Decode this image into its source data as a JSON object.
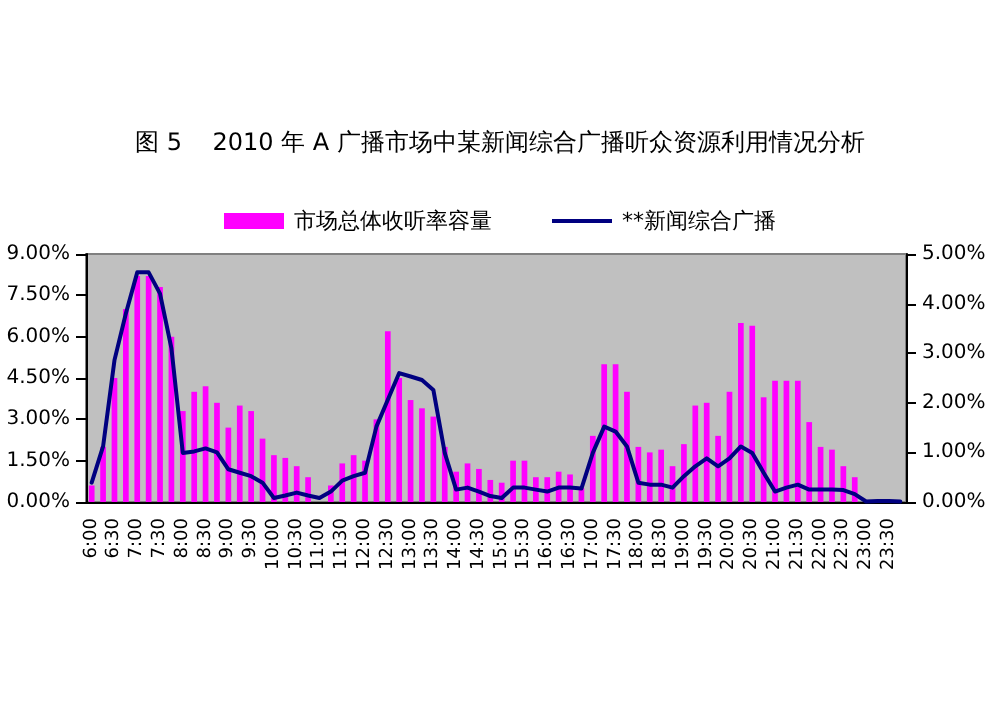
{
  "chart_data": {
    "type": "bar",
    "title": "图 5    2010 年 A 广播市场中某新闻综合广播听众资源利用情况分析",
    "categories": [
      "6:00",
      null,
      "6:30",
      null,
      "7:00",
      null,
      "7:30",
      null,
      "8:00",
      null,
      "8:30",
      null,
      "9:00",
      null,
      "9:30",
      null,
      "10:00",
      null,
      "10:30",
      null,
      "11:00",
      null,
      "11:30",
      null,
      "12:00",
      null,
      "12:30",
      null,
      "13:00",
      null,
      "13:30",
      null,
      "14:00",
      null,
      "14:30",
      null,
      "15:00",
      null,
      "15:30",
      null,
      "16:00",
      null,
      "16:30",
      null,
      "17:00",
      null,
      "17:30",
      null,
      "18:00",
      null,
      "18:30",
      null,
      "19:00",
      null,
      "19:30",
      null,
      "20:00",
      null,
      "20:30",
      null,
      "21:00",
      null,
      "21:30",
      null,
      "22:00",
      null,
      "22:30",
      null,
      "23:00",
      null,
      "23:30",
      null
    ],
    "series": [
      {
        "name": "市场总体收听率容量",
        "color": "#ff00ff",
        "values": [
          0.6,
          2.0,
          4.5,
          7.0,
          8.2,
          8.2,
          7.8,
          6.0,
          3.3,
          4.0,
          4.2,
          3.6,
          2.7,
          3.5,
          3.3,
          2.3,
          1.7,
          1.6,
          1.3,
          0.9,
          null,
          0.6,
          1.4,
          1.7,
          1.5,
          3.0,
          6.2,
          4.5,
          3.7,
          3.4,
          3.1,
          2.0,
          1.1,
          1.4,
          1.2,
          0.8,
          0.7,
          1.5,
          1.5,
          0.9,
          0.9,
          1.1,
          1.0,
          0.5,
          2.4,
          5.0,
          5.0,
          4.0,
          2.0,
          1.8,
          1.9,
          1.3,
          2.1,
          3.5,
          3.6,
          2.4,
          4.0,
          6.5,
          6.4,
          3.8,
          4.4,
          4.4,
          4.4,
          2.9,
          2.0,
          1.9,
          1.3,
          0.9,
          0,
          0,
          0,
          0
        ]
      },
      {
        "name": "**新闻综合广播",
        "type": "line",
        "axis": "y2",
        "color": "#000080",
        "values": [
          0.39,
          1.12,
          2.86,
          3.8,
          4.63,
          4.63,
          4.2,
          3.1,
          0.99,
          1.02,
          1.08,
          1.0,
          0.66,
          0.59,
          0.52,
          0.39,
          0.08,
          0.13,
          0.19,
          0.13,
          0.08,
          0.21,
          0.43,
          0.52,
          0.59,
          1.52,
          2.06,
          2.6,
          2.53,
          2.46,
          2.26,
          0.99,
          0.25,
          0.29,
          0.21,
          0.12,
          0.08,
          0.29,
          0.29,
          0.25,
          0.21,
          0.29,
          0.29,
          0.27,
          0.99,
          1.52,
          1.42,
          1.12,
          0.39,
          0.35,
          0.35,
          0.29,
          0.52,
          0.72,
          0.88,
          0.72,
          0.88,
          1.12,
          0.99,
          0.59,
          0.21,
          0.29,
          0.35,
          0.25,
          0.25,
          0.25,
          0.24,
          0.16,
          0.01,
          0.02,
          0.02,
          0.01
        ]
      }
    ],
    "ylim": [
      0,
      9
    ],
    "yticks": [
      {
        "value": 0,
        "label": "0.00%"
      },
      {
        "value": 1.5,
        "label": "1.50%"
      },
      {
        "value": 3,
        "label": "3.00%"
      },
      {
        "value": 4.5,
        "label": "4.50%"
      },
      {
        "value": 6,
        "label": "6.00%"
      },
      {
        "value": 7.5,
        "label": "7.50%"
      },
      {
        "value": 9,
        "label": "9.00%"
      }
    ],
    "y2lim": [
      0,
      5
    ],
    "y2ticks": [
      {
        "value": 0,
        "label": "0.00%"
      },
      {
        "value": 1,
        "label": "1.00%"
      },
      {
        "value": 2,
        "label": "2.00%"
      },
      {
        "value": 3,
        "label": "3.00%"
      },
      {
        "value": 4,
        "label": "4.00%"
      },
      {
        "value": 5,
        "label": "5.00%"
      }
    ],
    "legend": "top",
    "grid": false,
    "marker": "none",
    "line_style": "solid"
  }
}
